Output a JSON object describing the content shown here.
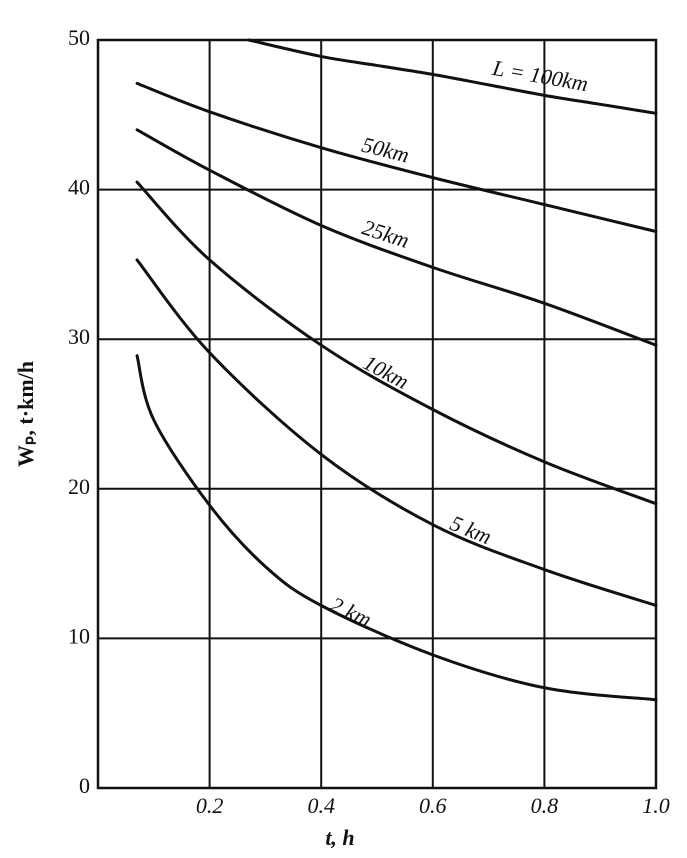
{
  "chart_data": {
    "type": "line",
    "x_label": "t, h",
    "y_label": "Wₚ, t·km/h",
    "xlim": [
      0,
      1
    ],
    "xticks": [
      0.2,
      0.4,
      0.6,
      0.8,
      {
        "value": 1,
        "label": "1.0"
      }
    ],
    "ylim": [
      0,
      50
    ],
    "yticks": [
      0,
      10,
      20,
      30,
      40,
      50
    ],
    "grid": true,
    "series": [
      {
        "name": "L = 100km",
        "color": "#111111",
        "x": [
          0.27,
          0.4,
          0.5,
          0.6,
          0.7,
          0.8,
          0.9,
          1.0
        ],
        "values": [
          50,
          48.9,
          48.3,
          47.7,
          47.0,
          46.3,
          45.7,
          45.1
        ]
      },
      {
        "name": "50km",
        "color": "#111111",
        "x": [
          0.07,
          0.2,
          0.4,
          0.6,
          0.8,
          1.0
        ],
        "values": [
          47.1,
          45.2,
          42.8,
          40.8,
          39.0,
          37.2
        ]
      },
      {
        "name": "25km",
        "color": "#111111",
        "x": [
          0.07,
          0.2,
          0.4,
          0.6,
          0.8,
          1.0
        ],
        "values": [
          44.0,
          41.3,
          37.6,
          34.8,
          32.4,
          29.6
        ]
      },
      {
        "name": "10km",
        "color": "#111111",
        "x": [
          0.07,
          0.2,
          0.4,
          0.6,
          0.8,
          1.0
        ],
        "values": [
          40.5,
          35.3,
          29.6,
          25.3,
          21.8,
          19.0
        ]
      },
      {
        "name": "5 km",
        "color": "#111111",
        "x": [
          0.07,
          0.2,
          0.4,
          0.6,
          0.8,
          1.0
        ],
        "values": [
          35.3,
          29.1,
          22.3,
          17.6,
          14.6,
          12.2
        ]
      },
      {
        "name": "2 km",
        "color": "#111111",
        "x": [
          0.07,
          0.1,
          0.2,
          0.3,
          0.4,
          0.6,
          0.8,
          1.0
        ],
        "values": [
          28.9,
          24.6,
          18.9,
          14.8,
          12.2,
          8.9,
          6.7,
          5.9
        ]
      }
    ]
  }
}
